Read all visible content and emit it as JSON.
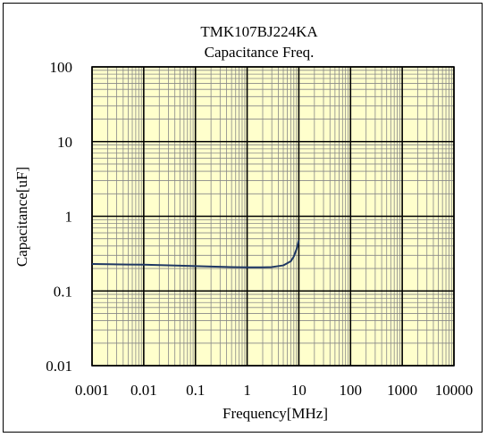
{
  "chart_data": {
    "type": "line",
    "title": "TMK107BJ224KA",
    "subtitle": "Capacitance Freq.",
    "xlabel": "Frequency[MHz]",
    "ylabel": "Capacitance[uF]",
    "x_scale": "log",
    "y_scale": "log",
    "xlim": [
      0.001,
      10000
    ],
    "ylim": [
      0.01,
      100
    ],
    "x_ticks": [
      "0.001",
      "0.01",
      "0.1",
      "1",
      "10",
      "100",
      "1000",
      "10000"
    ],
    "y_ticks": [
      "0.01",
      "0.1",
      "1",
      "10",
      "100"
    ],
    "grid": true,
    "legend": "none",
    "series": [
      {
        "color": "#1f3864",
        "x": [
          0.001,
          0.002,
          0.005,
          0.01,
          0.02,
          0.05,
          0.1,
          0.2,
          0.5,
          1,
          2,
          3,
          5,
          7,
          8,
          9,
          10
        ],
        "y": [
          0.23,
          0.228,
          0.226,
          0.225,
          0.222,
          0.218,
          0.215,
          0.212,
          0.209,
          0.207,
          0.207,
          0.209,
          0.22,
          0.25,
          0.29,
          0.36,
          0.48
        ]
      }
    ]
  },
  "colors": {
    "plot_background": "#ffffcc",
    "grid_major": "#000000",
    "grid_minor": "#888888",
    "curve": "#1f3864"
  }
}
